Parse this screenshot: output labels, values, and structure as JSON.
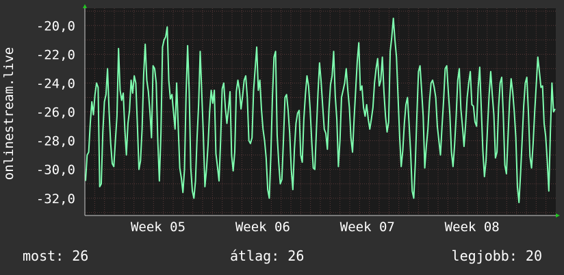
{
  "chart_data": {
    "type": "line",
    "ylabel": "onlinestream.live",
    "ylim": [
      -33.2,
      -18.8
    ],
    "yticks": [
      {
        "value": -20,
        "label": "-20,0"
      },
      {
        "value": -22,
        "label": "-22,0"
      },
      {
        "value": -24,
        "label": "-24,0"
      },
      {
        "value": -26,
        "label": "-26,0"
      },
      {
        "value": -28,
        "label": "-28,0"
      },
      {
        "value": -30,
        "label": "-30,0"
      },
      {
        "value": -32,
        "label": "-32,0"
      }
    ],
    "xlim": [
      4.3,
      8.8
    ],
    "xticks": [
      {
        "value": 5,
        "label": "Week 05"
      },
      {
        "value": 6,
        "label": "Week 06"
      },
      {
        "value": 7,
        "label": "Week 07"
      },
      {
        "value": 8,
        "label": "Week 08"
      }
    ],
    "grid": true,
    "colors": {
      "background": "#2f2f2f",
      "plot": "#1b1b1b",
      "grid": "#5a3a3a",
      "line": "#7fffb0",
      "axis": "#cccccc",
      "arrow": "#22c522"
    },
    "series": [
      {
        "values": [
          -30.8,
          -29.0,
          -28.8,
          -26.8,
          -25.3,
          -26.2,
          -24.8,
          -24.0,
          -24.3,
          -31.2,
          -31.0,
          -27.4,
          -25.3,
          -24.8,
          -23.0,
          -26.0,
          -28.2,
          -29.6,
          -29.8,
          -28.0,
          -26.3,
          -21.6,
          -24.5,
          -25.2,
          -24.7,
          -27.2,
          -29.0,
          -26.8,
          -25.9,
          -23.8,
          -24.7,
          -23.5,
          -24.0,
          -26.9,
          -30.0,
          -29.4,
          -27.2,
          -23.4,
          -21.3,
          -23.8,
          -24.6,
          -26.0,
          -27.8,
          -22.8,
          -23.0,
          -24.0,
          -28.0,
          -30.8,
          -27.5,
          -21.5,
          -21.0,
          -20.8,
          -20.1,
          -23.8,
          -25.1,
          -24.8,
          -26.0,
          -27.2,
          -24.0,
          -27.0,
          -29.9,
          -30.6,
          -31.6,
          -30.0,
          -24.8,
          -21.4,
          -24.6,
          -29.9,
          -31.5,
          -32.0,
          -30.8,
          -27.8,
          -25.5,
          -21.8,
          -24.7,
          -27.6,
          -31.2,
          -30.0,
          -28.3,
          -26.0,
          -24.5,
          -25.4,
          -24.5,
          -28.9,
          -29.8,
          -30.8,
          -28.0,
          -24.4,
          -24.0,
          -25.7,
          -26.8,
          -25.8,
          -24.6,
          -29.0,
          -30.1,
          -28.8,
          -24.6,
          -23.8,
          -24.5,
          -25.8,
          -24.9,
          -23.8,
          -23.5,
          -25.0,
          -28.0,
          -28.2,
          -27.8,
          -24.5,
          -23.0,
          -21.5,
          -24.5,
          -23.8,
          -25.8,
          -27.2,
          -28.0,
          -29.2,
          -31.4,
          -32.0,
          -29.0,
          -25.0,
          -22.2,
          -21.8,
          -27.6,
          -29.5,
          -31.0,
          -30.7,
          -28.0,
          -25.0,
          -24.8,
          -25.9,
          -27.5,
          -30.0,
          -31.4,
          -28.6,
          -26.8,
          -26.1,
          -25.9,
          -29.0,
          -29.5,
          -26.5,
          -24.8,
          -23.5,
          -24.2,
          -25.8,
          -28.0,
          -29.9,
          -30.0,
          -27.3,
          -24.7,
          -22.6,
          -23.9,
          -25.6,
          -27.2,
          -27.5,
          -28.6,
          -25.8,
          -24.1,
          -23.5,
          -21.8,
          -24.9,
          -26.5,
          -29.8,
          -28.0,
          -25.0,
          -24.5,
          -24.0,
          -23.0,
          -24.5,
          -25.7,
          -27.8,
          -28.8,
          -26.5,
          -24.5,
          -22.5,
          -21.2,
          -24.5,
          -24.2,
          -25.7,
          -26.3,
          -25.5,
          -26.5,
          -27.2,
          -26.5,
          -25.7,
          -24.0,
          -23.0,
          -22.3,
          -24.2,
          -23.8,
          -22.2,
          -24.6,
          -26.3,
          -27.4,
          -26.7,
          -21.8,
          -20.8,
          -19.5,
          -21.0,
          -22.2,
          -25.0,
          -27.7,
          -29.8,
          -28.7,
          -26.8,
          -25.5,
          -25.0,
          -26.8,
          -28.8,
          -31.5,
          -32.0,
          -29.5,
          -26.2,
          -23.2,
          -22.8,
          -24.5,
          -26.3,
          -29.9,
          -28.4,
          -27.2,
          -25.3,
          -24.0,
          -23.8,
          -24.3,
          -25.0,
          -27.0,
          -28.0,
          -29.0,
          -27.0,
          -25.2,
          -23.0,
          -22.8,
          -24.6,
          -26.2,
          -28.8,
          -29.8,
          -28.3,
          -26.3,
          -23.8,
          -23.0,
          -25.8,
          -27.0,
          -28.4,
          -26.9,
          -25.0,
          -24.0,
          -23.2,
          -25.5,
          -25.6,
          -26.7,
          -27.0,
          -24.3,
          -22.9,
          -25.8,
          -28.7,
          -30.5,
          -29.4,
          -27.0,
          -24.8,
          -23.2,
          -24.8,
          -26.2,
          -29.2,
          -28.8,
          -25.7,
          -24.0,
          -23.6,
          -26.2,
          -29.7,
          -30.3,
          -27.8,
          -25.3,
          -23.7,
          -24.6,
          -26.0,
          -27.8,
          -31.2,
          -32.3,
          -30.3,
          -28.0,
          -25.6,
          -24.0,
          -23.6,
          -26.0,
          -29.1,
          -29.9,
          -28.2,
          -26.0,
          -24.1,
          -22.2,
          -23.2,
          -24.3,
          -24.2,
          -26.8,
          -27.7,
          -29.4,
          -31.5,
          -27.4,
          -24.0,
          -26.0,
          -25.8
        ]
      }
    ]
  },
  "stats": {
    "current": "most: 26",
    "average": "átlag: 26",
    "best": "legjobb: 20"
  }
}
